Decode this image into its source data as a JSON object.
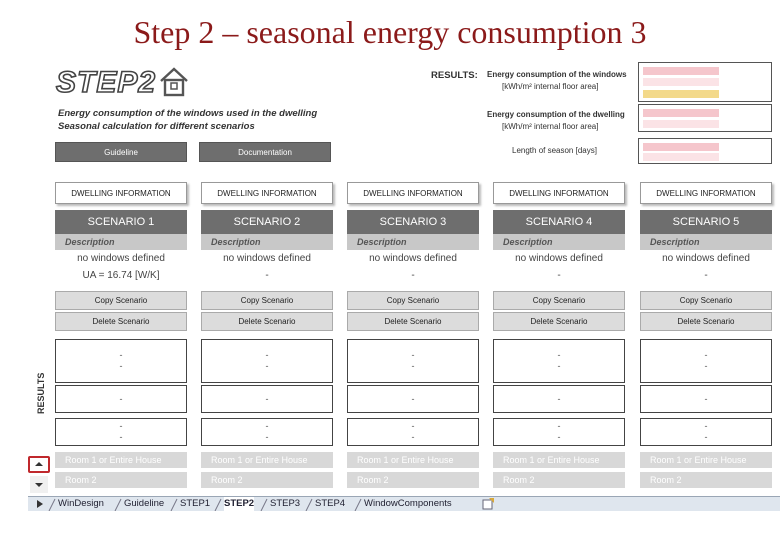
{
  "slide": {
    "title": "Step 2 – seasonal energy consumption 3"
  },
  "header": {
    "logo_text": "STEP2",
    "subtitle_line1": "Energy consumption of the windows used in the dwelling",
    "subtitle_line2": "Seasonal calculation for different scenarios",
    "guideline_button": "Guideline",
    "documentation_button": "Documentation"
  },
  "results_panel": {
    "label": "RESULTS:",
    "windows_line1": "Energy consumption of the windows",
    "windows_line2": "[kWh/m² internal floor area]",
    "dwelling_line1": "Energy consumption of the dwelling",
    "dwelling_line2": "[kWh/m² internal floor area]",
    "season_line": "Length of season [days]",
    "colors": {
      "pink": "#f5c6cc",
      "yellow": "#f3d98a",
      "light": "#fbe3e6"
    }
  },
  "side_label": "RESULTS",
  "scenarios": [
    {
      "dwelling": "DWELLING INFORMATION",
      "name": "SCENARIO 1",
      "description_label": "Description",
      "windows": "no windows defined",
      "ua": "UA = 16.74 [W/K]",
      "copy": "Copy Scenario",
      "delete": "Delete Scenario",
      "r1a": "-",
      "r1b": "-",
      "r2": "-",
      "r3a": "-",
      "r3b": "-",
      "room1": "Room 1 or Entire House",
      "room2": "Room 2"
    },
    {
      "dwelling": "DWELLING INFORMATION",
      "name": "SCENARIO 2",
      "description_label": "Description",
      "windows": "no windows defined",
      "ua": "-",
      "copy": "Copy Scenario",
      "delete": "Delete Scenario",
      "r1a": "-",
      "r1b": "-",
      "r2": "-",
      "r3a": "-",
      "r3b": "-",
      "room1": "Room 1 or Entire House",
      "room2": "Room 2"
    },
    {
      "dwelling": "DWELLING INFORMATION",
      "name": "SCENARIO 3",
      "description_label": "Description",
      "windows": "no windows defined",
      "ua": "-",
      "copy": "Copy Scenario",
      "delete": "Delete Scenario",
      "r1a": "-",
      "r1b": "-",
      "r2": "-",
      "r3a": "-",
      "r3b": "-",
      "room1": "Room 1 or Entire House",
      "room2": "Room 2"
    },
    {
      "dwelling": "DWELLING INFORMATION",
      "name": "SCENARIO 4",
      "description_label": "Description",
      "windows": "no windows defined",
      "ua": "-",
      "copy": "Copy Scenario",
      "delete": "Delete Scenario",
      "r1a": "-",
      "r1b": "-",
      "r2": "-",
      "r3a": "-",
      "r3b": "-",
      "room1": "Room 1 or Entire House",
      "room2": "Room 2"
    },
    {
      "dwelling": "DWELLING INFORMATION",
      "name": "SCENARIO 5",
      "description_label": "Description",
      "windows": "no windows defined",
      "ua": "-",
      "copy": "Copy Scenario",
      "delete": "Delete Scenario",
      "r1a": "-",
      "r1b": "-",
      "r2": "-",
      "r3a": "-",
      "r3b": "-",
      "room1": "Room 1 or Entire House",
      "room2": "Room 2"
    }
  ],
  "sheet_tabs": [
    "WinDesign",
    "Guideline",
    "STEP1",
    "STEP2",
    "STEP3",
    "STEP4",
    "WindowComponents"
  ],
  "active_tab": "STEP2"
}
